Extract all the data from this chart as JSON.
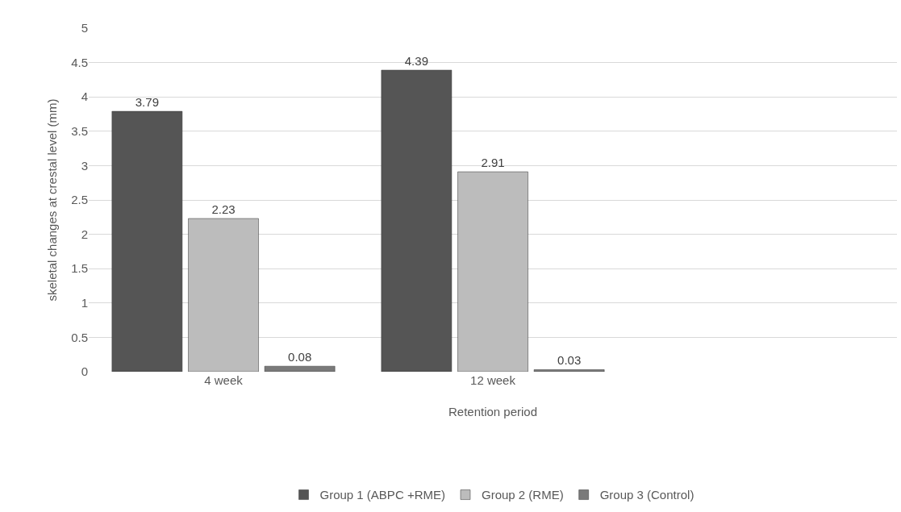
{
  "chart_data": {
    "type": "bar",
    "xlabel": "Retention period",
    "ylabel": "skeletal changes at crestal level (mm)",
    "categories": [
      "4 week",
      "12 week",
      null
    ],
    "series": [
      {
        "name": "Group 1 (ABPC +RME)",
        "color": "#555555",
        "values": [
          3.79,
          4.39,
          null
        ]
      },
      {
        "name": "Group 2 (RME)",
        "color": "#bcbcbc",
        "values": [
          2.23,
          2.91,
          null
        ]
      },
      {
        "name": "Group 3 (Control)",
        "color": "#7a7a7a",
        "values": [
          0.08,
          0.03,
          null
        ]
      }
    ],
    "ylim": [
      0,
      5
    ],
    "yticks": [
      0,
      0.5,
      1,
      1.5,
      2,
      2.5,
      3,
      3.5,
      4,
      4.5,
      5
    ],
    "grid": "y",
    "legend": "bottom",
    "data_labels": true
  }
}
